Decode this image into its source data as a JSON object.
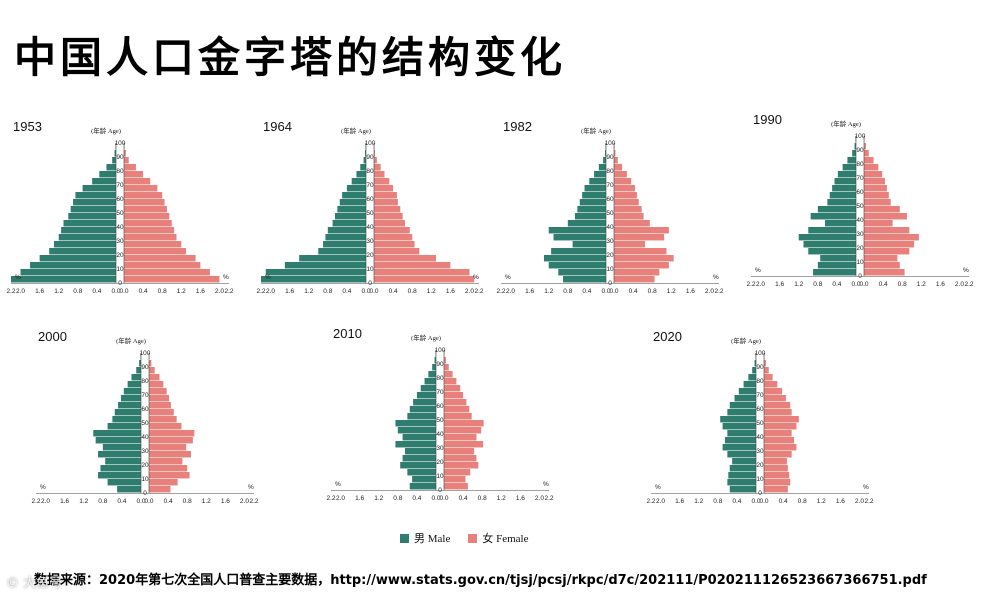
{
  "title": "中国人口金字塔的结构变化",
  "age_label": "(年龄 Age)",
  "percent_label": "%",
  "legend": {
    "male": "男 Male",
    "female": "女 Female"
  },
  "colors": {
    "male": "#2e7d6f",
    "female": "#e8817c"
  },
  "source_prefix": "数据来源：",
  "source_text": "2020年第七次全国人口普查主要数据，http://www.stats.gov.cn/tjsj/pcsj/rkpc/d7c/202111/P020211126523667366751.pdf",
  "watermark": "© 大鱼号",
  "chart_data": [
    {
      "type": "bar",
      "year": "1953",
      "y_ticks": [
        "0",
        "10",
        "20",
        "30",
        "40",
        "50",
        "60",
        "70",
        "80",
        "90",
        "100"
      ],
      "x_ticks": [
        "2.2",
        "2.0",
        "1.6",
        "1.2",
        "0.8",
        "0.4",
        "0.0",
        "0.0",
        "0.4",
        "0.8",
        "1.2",
        "1.6",
        "2.0",
        "2.2"
      ],
      "xlim": [
        0,
        2.2
      ],
      "ylim": [
        0,
        100
      ],
      "male": [
        2.2,
        2.0,
        1.8,
        1.6,
        1.4,
        1.3,
        1.2,
        1.15,
        1.1,
        1.0,
        0.95,
        0.9,
        0.85,
        0.7,
        0.5,
        0.35,
        0.2,
        0.08,
        0.03,
        0.01
      ],
      "female": [
        2.0,
        1.8,
        1.6,
        1.5,
        1.3,
        1.2,
        1.1,
        1.05,
        1.0,
        0.95,
        0.9,
        0.85,
        0.8,
        0.7,
        0.55,
        0.4,
        0.25,
        0.1,
        0.04,
        0.01
      ]
    },
    {
      "type": "bar",
      "year": "1964",
      "y_ticks": [
        "0",
        "10",
        "20",
        "30",
        "40",
        "50",
        "60",
        "70",
        "80",
        "90",
        "100"
      ],
      "x_ticks": [
        "2.2",
        "2.0",
        "1.6",
        "1.2",
        "0.8",
        "0.4",
        "0.0",
        "0.0",
        "0.4",
        "0.8",
        "1.2",
        "1.6",
        "2.0",
        "2.2"
      ],
      "xlim": [
        0,
        2.2
      ],
      "ylim": [
        0,
        100
      ],
      "male": [
        2.2,
        2.1,
        1.7,
        1.4,
        1.0,
        0.9,
        0.85,
        0.8,
        0.7,
        0.65,
        0.6,
        0.55,
        0.5,
        0.4,
        0.3,
        0.2,
        0.12,
        0.05,
        0.02,
        0.01
      ],
      "female": [
        2.1,
        2.0,
        1.6,
        1.3,
        0.95,
        0.85,
        0.8,
        0.75,
        0.65,
        0.6,
        0.55,
        0.5,
        0.48,
        0.4,
        0.32,
        0.22,
        0.14,
        0.06,
        0.02,
        0.01
      ]
    },
    {
      "type": "bar",
      "year": "1982",
      "y_ticks": [
        "0",
        "10",
        "20",
        "30",
        "40",
        "50",
        "60",
        "70",
        "80",
        "90",
        "100"
      ],
      "x_ticks": [
        "2.2",
        "2.0",
        "1.6",
        "1.2",
        "0.8",
        "0.4",
        "0.0",
        "0.0",
        "0.4",
        "0.8",
        "1.2",
        "1.6",
        "2.0",
        "2.2"
      ],
      "xlim": [
        0,
        2.2
      ],
      "ylim": [
        0,
        100
      ],
      "male": [
        0.9,
        1.0,
        1.2,
        1.3,
        1.15,
        0.7,
        1.1,
        1.2,
        0.8,
        0.65,
        0.6,
        0.55,
        0.5,
        0.45,
        0.35,
        0.25,
        0.15,
        0.06,
        0.02,
        0.01
      ],
      "female": [
        0.85,
        0.95,
        1.15,
        1.25,
        1.1,
        0.65,
        1.05,
        1.15,
        0.75,
        0.62,
        0.58,
        0.52,
        0.48,
        0.44,
        0.36,
        0.27,
        0.17,
        0.08,
        0.03,
        0.01
      ]
    },
    {
      "type": "bar",
      "year": "1990",
      "y_ticks": [
        "0",
        "10",
        "20",
        "30",
        "40",
        "50",
        "60",
        "70",
        "80",
        "90",
        "100"
      ],
      "x_ticks": [
        "2.2",
        "2.0",
        "1.6",
        "1.2",
        "0.8",
        "0.4",
        "0.0",
        "0.0",
        "0.4",
        "0.8",
        "1.2",
        "1.6",
        "2.0",
        "2.2"
      ],
      "xlim": [
        0,
        2.2
      ],
      "ylim": [
        0,
        100
      ],
      "male": [
        0.9,
        0.8,
        0.75,
        1.0,
        1.1,
        1.2,
        1.0,
        0.65,
        0.95,
        0.8,
        0.6,
        0.55,
        0.5,
        0.45,
        0.38,
        0.28,
        0.18,
        0.08,
        0.03,
        0.01
      ],
      "female": [
        0.85,
        0.75,
        0.7,
        0.95,
        1.05,
        1.15,
        0.95,
        0.6,
        0.9,
        0.75,
        0.56,
        0.52,
        0.48,
        0.44,
        0.38,
        0.3,
        0.2,
        0.1,
        0.04,
        0.01
      ]
    },
    {
      "type": "bar",
      "year": "2000",
      "y_ticks": [
        "0",
        "10",
        "20",
        "30",
        "40",
        "50",
        "60",
        "70",
        "80",
        "90",
        "100"
      ],
      "x_ticks": [
        "2.2",
        "2.0",
        "1.6",
        "1.2",
        "0.8",
        "0.4",
        "0.0",
        "0.0",
        "0.4",
        "0.8",
        "1.2",
        "1.6",
        "2.0",
        "2.2"
      ],
      "xlim": [
        0,
        2.2
      ],
      "ylim": [
        0,
        100
      ],
      "male": [
        0.5,
        0.7,
        0.9,
        0.85,
        0.75,
        0.9,
        0.8,
        0.95,
        1.0,
        0.7,
        0.6,
        0.55,
        0.48,
        0.42,
        0.36,
        0.28,
        0.2,
        0.1,
        0.04,
        0.01
      ],
      "female": [
        0.45,
        0.6,
        0.85,
        0.8,
        0.7,
        0.88,
        0.78,
        0.92,
        0.95,
        0.68,
        0.58,
        0.52,
        0.46,
        0.42,
        0.37,
        0.3,
        0.22,
        0.12,
        0.05,
        0.01
      ]
    },
    {
      "type": "bar",
      "year": "2010",
      "y_ticks": [
        "0",
        "10",
        "20",
        "30",
        "40",
        "50",
        "60",
        "70",
        "80",
        "90",
        "100"
      ],
      "x_ticks": [
        "2.2",
        "2.0",
        "1.6",
        "1.2",
        "0.8",
        "0.4",
        "0.0",
        "0.0",
        "0.4",
        "0.8",
        "1.2",
        "1.6",
        "2.0",
        "2.2"
      ],
      "xlim": [
        0,
        2.2
      ],
      "ylim": [
        0,
        100
      ],
      "male": [
        0.55,
        0.5,
        0.6,
        0.75,
        0.7,
        0.65,
        0.85,
        0.7,
        0.8,
        0.85,
        0.6,
        0.55,
        0.48,
        0.4,
        0.32,
        0.24,
        0.16,
        0.08,
        0.03,
        0.01
      ],
      "female": [
        0.5,
        0.45,
        0.55,
        0.72,
        0.68,
        0.63,
        0.82,
        0.68,
        0.78,
        0.83,
        0.58,
        0.53,
        0.47,
        0.4,
        0.34,
        0.26,
        0.18,
        0.1,
        0.04,
        0.01
      ]
    },
    {
      "type": "bar",
      "year": "2020",
      "y_ticks": [
        "0",
        "10",
        "20",
        "30",
        "40",
        "50",
        "60",
        "70",
        "80",
        "90",
        "100"
      ],
      "x_ticks": [
        "2.2",
        "2.0",
        "1.6",
        "1.2",
        "0.8",
        "0.4",
        "0.0",
        "0.0",
        "0.4",
        "0.8",
        "1.2",
        "1.6",
        "2.0",
        "2.2"
      ],
      "xlim": [
        0,
        2.2
      ],
      "ylim": [
        0,
        100
      ],
      "male": [
        0.55,
        0.6,
        0.58,
        0.55,
        0.5,
        0.6,
        0.7,
        0.65,
        0.6,
        0.7,
        0.75,
        0.6,
        0.55,
        0.45,
        0.36,
        0.26,
        0.16,
        0.08,
        0.03,
        0.01
      ],
      "female": [
        0.5,
        0.55,
        0.53,
        0.5,
        0.48,
        0.58,
        0.68,
        0.63,
        0.58,
        0.68,
        0.73,
        0.58,
        0.55,
        0.46,
        0.38,
        0.28,
        0.18,
        0.1,
        0.04,
        0.01
      ]
    }
  ]
}
